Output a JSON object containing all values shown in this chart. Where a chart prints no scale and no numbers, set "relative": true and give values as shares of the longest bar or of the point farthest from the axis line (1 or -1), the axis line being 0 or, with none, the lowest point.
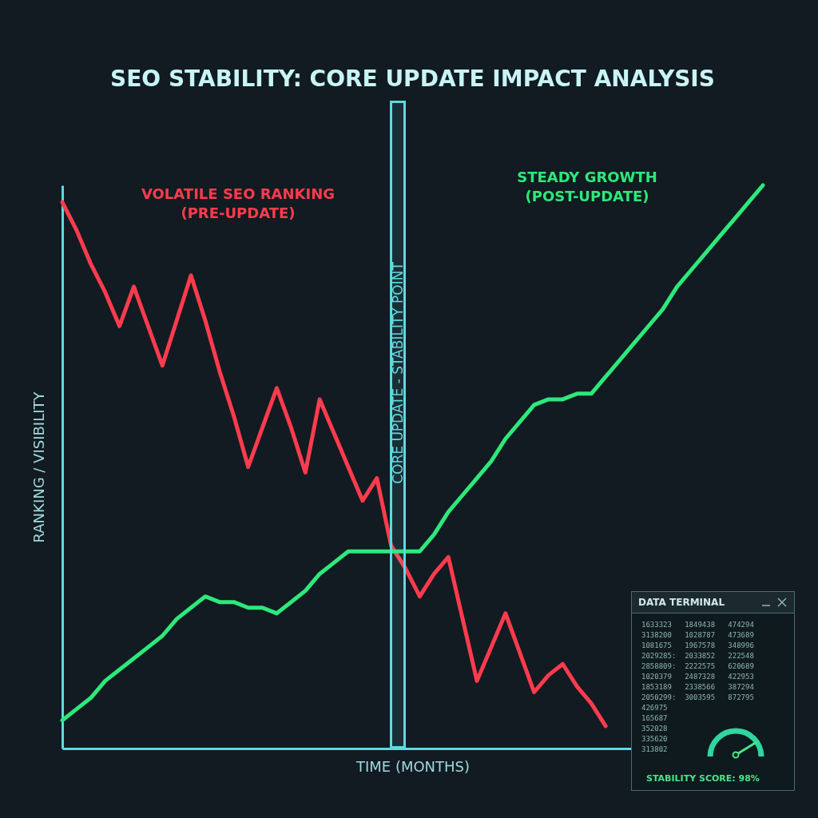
{
  "chart_data": [
    {
      "type": "line",
      "title": "SEO STABILITY: CORE UPDATE IMPACT ANALYSIS",
      "xlabel": "TIME (MONTHS)",
      "ylabel": "RANKING / VISIBILITY",
      "relative": true,
      "tick_labels": false,
      "categories": [
        null,
        null,
        null,
        null,
        null,
        null,
        null,
        null,
        null,
        null,
        null,
        null,
        null,
        null,
        null,
        null,
        null,
        null,
        null,
        null,
        null,
        null,
        null,
        null,
        null,
        null,
        null,
        null,
        null,
        null,
        null,
        null,
        null,
        null,
        null,
        null,
        null,
        null,
        null,
        null,
        null,
        null,
        null,
        null,
        null,
        null,
        null,
        null,
        null,
        null
      ],
      "series": [
        {
          "name": "VOLATILE SEO RANKING\n(PRE-UPDATE)",
          "color": "#ff3b4e",
          "values": [
            0.97,
            0.92,
            0.86,
            0.81,
            0.75,
            0.82,
            0.75,
            0.68,
            0.76,
            0.84,
            0.76,
            0.67,
            0.59,
            0.5,
            0.57,
            0.64,
            0.57,
            0.49,
            0.62,
            0.56,
            0.5,
            0.44,
            0.48,
            0.36,
            0.32,
            0.27,
            0.31,
            0.34,
            0.23,
            0.12,
            0.18,
            0.24,
            0.17,
            0.1,
            0.13,
            0.15,
            0.11,
            0.08,
            0.04,
            null,
            null,
            null,
            null,
            null,
            null,
            null,
            null,
            null,
            null,
            null
          ]
        },
        {
          "name": "STEADY GROWTH\n(POST-UPDATE)",
          "color": "#2ee87a",
          "values": [
            0.05,
            0.07,
            0.09,
            0.12,
            0.14,
            0.16,
            0.18,
            0.2,
            0.23,
            0.25,
            0.27,
            0.26,
            0.26,
            0.25,
            0.25,
            0.24,
            0.26,
            0.28,
            0.31,
            0.33,
            0.35,
            0.35,
            0.35,
            0.35,
            0.35,
            0.35,
            0.38,
            0.42,
            0.45,
            0.48,
            0.51,
            0.55,
            0.58,
            0.61,
            0.62,
            0.62,
            0.63,
            0.63,
            0.66,
            0.69,
            0.72,
            0.75,
            0.78,
            0.82,
            0.85,
            0.88,
            0.91,
            0.94,
            0.97,
            1
          ]
        }
      ],
      "annotations": [
        "CORE UPDATE - STABILITY POINT"
      ]
    },
    {
      "type": "other",
      "title": "DATA TERMINAL",
      "annotations": [
        "1633323   1849438   474294",
        "3138200   1028787   473689",
        "1081675   1967578   348996",
        "2029285:  2033852   222548",
        "2858809:  2222575   620689",
        "1020379   2487328   422953",
        "1853189   2338566   387294",
        "2050299:  3003595   872795",
        "426975",
        "165687",
        "352028",
        "335620",
        "313802",
        "STABILITY SCORE: 98%"
      ]
    }
  ]
}
